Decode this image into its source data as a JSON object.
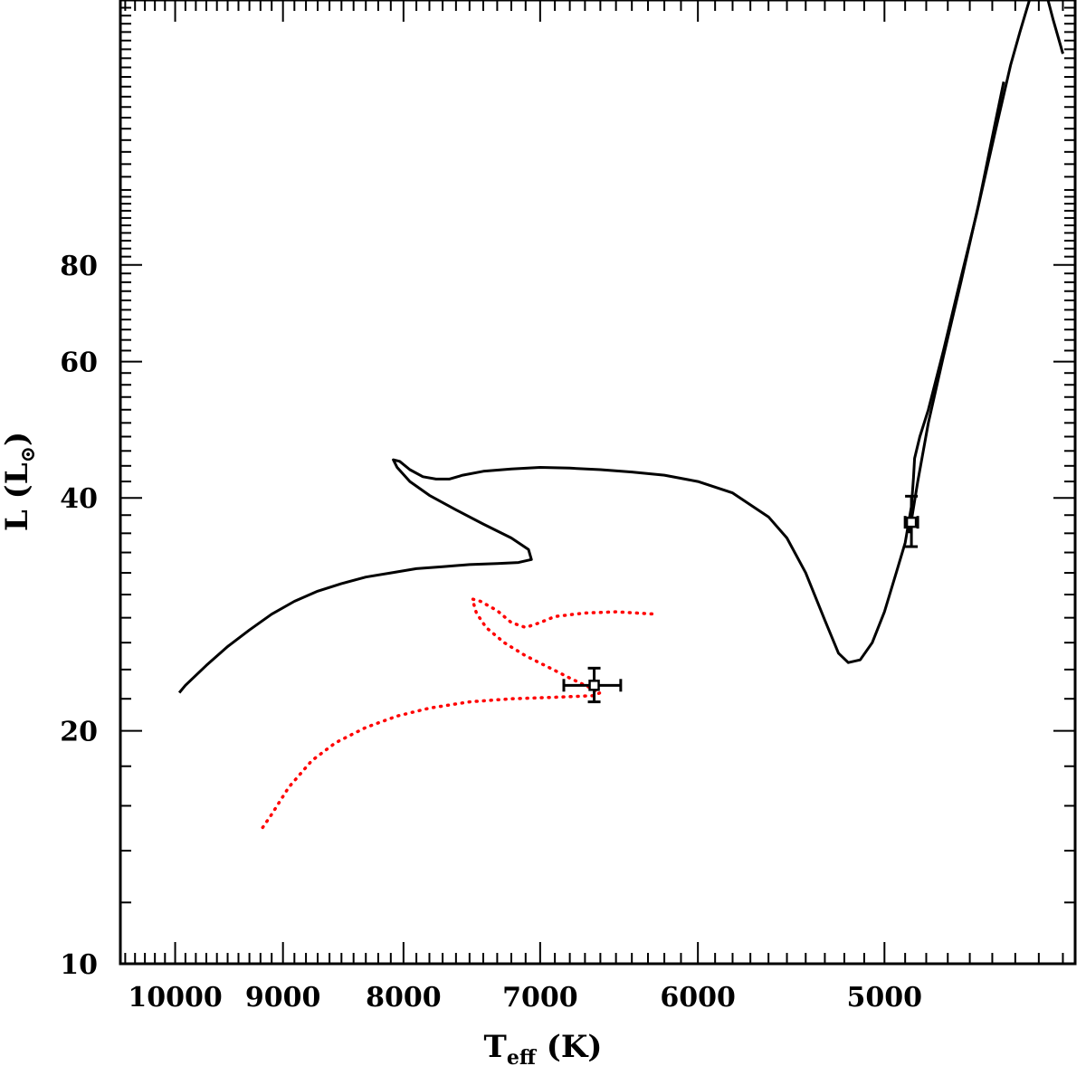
{
  "chart_data": {
    "type": "line",
    "title": "",
    "xlabel": {
      "main": "T",
      "sub": "eff",
      "unit": "(K)"
    },
    "ylabel": {
      "main": "L",
      "unit_open": "(L",
      "unit_sub": "⊙",
      "unit_close": ")"
    },
    "x_scale": "log-reversed",
    "y_scale": "log",
    "xlim": [
      10550,
      4150
    ],
    "ylim": [
      10,
      176
    ],
    "x_ticks": [
      10000,
      9000,
      8000,
      7000,
      6000,
      5000
    ],
    "x_tick_labels": [
      "10000",
      "9000",
      "8000",
      "7000",
      "6000",
      "5000"
    ],
    "y_ticks": [
      10,
      20,
      40,
      60,
      80
    ],
    "y_tick_labels": [
      "10",
      "20",
      "40",
      "60",
      "80"
    ],
    "grid": false,
    "series": [
      {
        "style": "solid",
        "color": "#000000",
        "points": [
          [
            9960,
            22.4
          ],
          [
            9900,
            22.9
          ],
          [
            9700,
            24.3
          ],
          [
            9500,
            25.7
          ],
          [
            9300,
            27.0
          ],
          [
            9100,
            28.3
          ],
          [
            8900,
            29.4
          ],
          [
            8700,
            30.3
          ],
          [
            8500,
            31.0
          ],
          [
            8300,
            31.6
          ],
          [
            8100,
            32.0
          ],
          [
            7900,
            32.4
          ],
          [
            7700,
            32.6
          ],
          [
            7500,
            32.8
          ],
          [
            7300,
            32.9
          ],
          [
            7150,
            33.0
          ],
          [
            7060,
            33.3
          ],
          [
            7080,
            34.3
          ],
          [
            7200,
            35.5
          ],
          [
            7400,
            37.0
          ],
          [
            7600,
            38.6
          ],
          [
            7800,
            40.3
          ],
          [
            7950,
            42.0
          ],
          [
            8050,
            43.8
          ],
          [
            8080,
            44.8
          ],
          [
            8030,
            44.6
          ],
          [
            7950,
            43.5
          ],
          [
            7850,
            42.6
          ],
          [
            7750,
            42.3
          ],
          [
            7650,
            42.3
          ],
          [
            7550,
            42.8
          ],
          [
            7400,
            43.3
          ],
          [
            7200,
            43.6
          ],
          [
            7000,
            43.8
          ],
          [
            6800,
            43.7
          ],
          [
            6600,
            43.5
          ],
          [
            6400,
            43.2
          ],
          [
            6200,
            42.8
          ],
          [
            6000,
            42.0
          ],
          [
            5800,
            40.6
          ],
          [
            5600,
            37.8
          ],
          [
            5500,
            35.5
          ],
          [
            5400,
            32.0
          ],
          [
            5300,
            27.8
          ],
          [
            5230,
            25.2
          ],
          [
            5180,
            24.5
          ],
          [
            5120,
            24.7
          ],
          [
            5060,
            26.0
          ],
          [
            5000,
            28.5
          ],
          [
            4940,
            32.2
          ],
          [
            4900,
            35.0
          ],
          [
            4870,
            39.0
          ],
          [
            4860,
            42.5
          ],
          [
            4855,
            45.0
          ],
          [
            4830,
            48.0
          ],
          [
            4790,
            52.0
          ],
          [
            4720,
            62.0
          ],
          [
            4650,
            75.0
          ],
          [
            4570,
            93.0
          ],
          [
            4490,
            118.0
          ],
          [
            4420,
            145.0
          ],
          [
            4380,
            160.0
          ],
          [
            4330,
            180.0
          ]
        ]
      },
      {
        "style": "solid",
        "color": "#000000",
        "points": [
          [
            4880,
            36.0
          ],
          [
            4840,
            42.0
          ],
          [
            4790,
            50.0
          ],
          [
            4720,
            61.0
          ],
          [
            4640,
            76.0
          ],
          [
            4560,
            96.0
          ],
          [
            4490,
            121.0
          ],
          [
            4450,
            138.0
          ]
        ]
      },
      {
        "style": "solid",
        "color": "#000000",
        "points": [
          [
            4270,
            180.0
          ],
          [
            4240,
            166.0
          ],
          [
            4200,
            150.0
          ]
        ]
      },
      {
        "style": "dotted",
        "color": "#ff0000",
        "points": [
          [
            9180,
            15.0
          ],
          [
            9100,
            15.6
          ],
          [
            8950,
            16.9
          ],
          [
            8750,
            18.3
          ],
          [
            8550,
            19.3
          ],
          [
            8300,
            20.2
          ],
          [
            8050,
            20.9
          ],
          [
            7800,
            21.4
          ],
          [
            7500,
            21.8
          ],
          [
            7200,
            22.0
          ],
          [
            6900,
            22.1
          ],
          [
            6650,
            22.2
          ],
          [
            6600,
            22.4
          ],
          [
            6680,
            22.8
          ],
          [
            6800,
            23.4
          ],
          [
            6950,
            24.2
          ],
          [
            7100,
            25.0
          ],
          [
            7250,
            26.0
          ],
          [
            7380,
            27.2
          ],
          [
            7450,
            28.4
          ],
          [
            7480,
            29.6
          ],
          [
            7420,
            29.4
          ],
          [
            7300,
            28.6
          ],
          [
            7200,
            27.6
          ],
          [
            7100,
            27.2
          ],
          [
            7000,
            27.6
          ],
          [
            6900,
            28.1
          ],
          [
            6700,
            28.4
          ],
          [
            6500,
            28.5
          ],
          [
            6250,
            28.3
          ]
        ]
      }
    ],
    "error_points": [
      {
        "x": 6640,
        "y": 22.9,
        "xerr": [
          170,
          200
        ],
        "yerr": [
          1.1,
          1.2
        ]
      },
      {
        "x": 4870,
        "y": 37.2,
        "xerr": [
          30,
          30
        ],
        "yerr": [
          2.6,
          3.0
        ]
      }
    ]
  }
}
